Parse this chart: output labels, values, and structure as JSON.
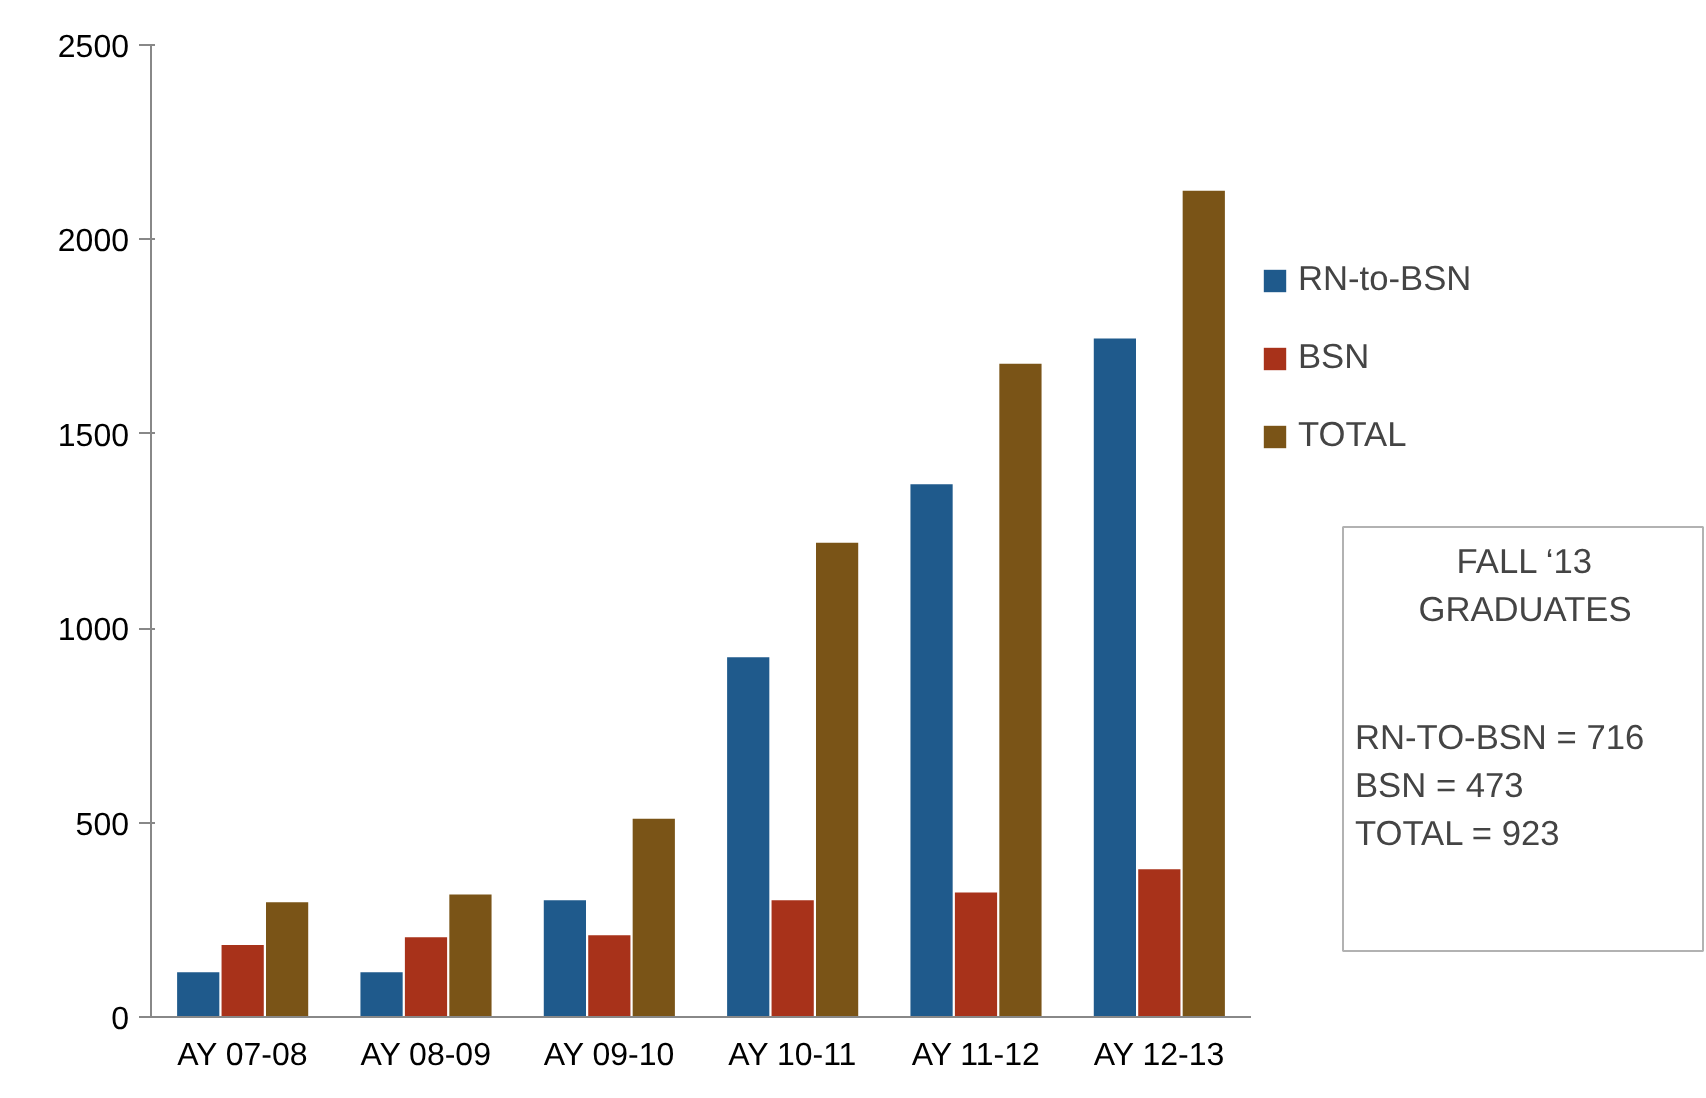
{
  "chart_data": {
    "type": "bar",
    "categories": [
      "AY 07-08",
      "AY 08-09",
      "AY 09-10",
      "AY 10-11",
      "AY 11-12",
      "AY 12-13"
    ],
    "series": [
      {
        "name": "RN-to-BSN",
        "color": "#1f5a8c",
        "values": [
          115,
          115,
          300,
          925,
          1370,
          1745
        ]
      },
      {
        "name": "BSN",
        "color": "#a8321a",
        "values": [
          185,
          205,
          210,
          300,
          320,
          380
        ]
      },
      {
        "name": "TOTAL",
        "color": "#7a5417",
        "values": [
          295,
          315,
          510,
          1220,
          1680,
          2125
        ]
      }
    ],
    "ylim": [
      0,
      2500
    ],
    "yticks": [
      0,
      500,
      1000,
      1500,
      2000,
      2500
    ],
    "grid": false,
    "legend": "right",
    "annotations": [
      "FALL ‘13\nGRADUATES",
      "RN-TO-BSN = 716\nBSN = 473\nTOTAL = 923"
    ]
  }
}
